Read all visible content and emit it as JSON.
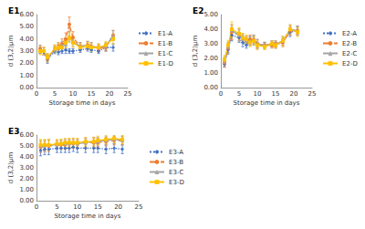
{
  "chart_data": [
    {
      "type": "line",
      "title": "E1",
      "xlabel": "Storage time in days",
      "ylabel": "d (3,2)μm",
      "grid": false,
      "xlim": [
        0,
        25
      ],
      "xticks": [
        0,
        5,
        10,
        15,
        20,
        25
      ],
      "ylim": [
        0,
        6
      ],
      "yticks": [
        {
          "value": 0,
          "label": "0.00"
        },
        {
          "value": 1,
          "label": "1.00"
        },
        {
          "value": 2,
          "label": "2.00"
        },
        {
          "value": 3,
          "label": "3.00"
        },
        {
          "value": 4,
          "label": "4.00"
        },
        {
          "value": 5,
          "label": "5.00"
        },
        {
          "value": 6,
          "label": "6.00"
        }
      ],
      "x": [
        1,
        2,
        3,
        5,
        6,
        7,
        8,
        9,
        10,
        12,
        14,
        15,
        17,
        19,
        21
      ],
      "series": [
        {
          "name": "E1-A",
          "color": "#4472c4",
          "marker": "diamond",
          "line_style": "dotted",
          "values": [
            3.0,
            2.9,
            2.3,
            3.0,
            2.9,
            3.0,
            3.1,
            3.0,
            3.0,
            3.1,
            3.2,
            3.1,
            3.0,
            3.3,
            3.3
          ],
          "errors": [
            0.2,
            0.2,
            0.3,
            0.2,
            0.2,
            0.2,
            0.3,
            0.2,
            0.2,
            0.2,
            0.2,
            0.2,
            0.2,
            0.3,
            0.3
          ]
        },
        {
          "name": "E1-B",
          "color": "#ed7d31",
          "marker": "circle",
          "line_style": "dashed",
          "values": [
            3.2,
            3.0,
            2.4,
            3.2,
            3.4,
            3.6,
            4.0,
            5.2,
            4.1,
            3.4,
            3.5,
            3.4,
            3.2,
            3.3,
            4.3
          ],
          "errors": [
            0.3,
            0.3,
            0.3,
            0.3,
            0.3,
            0.4,
            0.5,
            0.6,
            0.5,
            0.3,
            0.3,
            0.3,
            0.3,
            0.3,
            0.4
          ]
        },
        {
          "name": "E1-C",
          "color": "#a5a5a5",
          "marker": "triangle",
          "line_style": "solid",
          "values": [
            3.1,
            3.0,
            2.5,
            3.1,
            3.3,
            3.5,
            3.6,
            4.2,
            3.8,
            3.4,
            3.5,
            3.4,
            3.3,
            3.4,
            4.3
          ],
          "errors": [
            0.3,
            0.3,
            0.3,
            0.3,
            0.3,
            0.3,
            0.4,
            0.4,
            0.4,
            0.3,
            0.3,
            0.3,
            0.3,
            0.3,
            0.4
          ]
        },
        {
          "name": "E1-D",
          "color": "#ffc000",
          "marker": "square",
          "line_style": "solid",
          "values": [
            3.0,
            3.0,
            2.5,
            3.2,
            3.3,
            3.3,
            3.7,
            4.1,
            3.7,
            3.3,
            3.4,
            3.3,
            3.3,
            3.5,
            4.0
          ],
          "errors": [
            0.3,
            0.3,
            0.3,
            0.3,
            0.3,
            0.3,
            0.4,
            0.4,
            0.4,
            0.3,
            0.3,
            0.3,
            0.3,
            0.3,
            0.4
          ]
        }
      ]
    },
    {
      "type": "line",
      "title": "E2",
      "xlabel": "Storage time in days",
      "ylabel": "d (3,2)μm",
      "grid": false,
      "xlim": [
        0,
        25
      ],
      "xticks": [
        0,
        5,
        10,
        15,
        20,
        25
      ],
      "ylim": [
        0,
        5
      ],
      "yticks": [
        {
          "value": 0,
          "label": "0.00"
        },
        {
          "value": 1,
          "label": "1.00"
        },
        {
          "value": 2,
          "label": "2.00"
        },
        {
          "value": 3,
          "label": "3.00"
        },
        {
          "value": 4,
          "label": "4.00"
        },
        {
          "value": 5,
          "label": "5.00"
        }
      ],
      "x": [
        1,
        2,
        3,
        5,
        6,
        7,
        8,
        9,
        10,
        12,
        14,
        15,
        17,
        19,
        21
      ],
      "series": [
        {
          "name": "E2-A",
          "color": "#4472c4",
          "marker": "diamond",
          "line_style": "dotted",
          "values": [
            1.6,
            2.6,
            3.6,
            3.4,
            3.1,
            2.9,
            3.2,
            3.2,
            2.9,
            2.9,
            3.0,
            2.9,
            3.1,
            3.8,
            3.9
          ],
          "errors": [
            0.2,
            0.3,
            0.4,
            0.3,
            0.3,
            0.2,
            0.3,
            0.3,
            0.2,
            0.2,
            0.2,
            0.2,
            0.2,
            0.3,
            0.3
          ]
        },
        {
          "name": "E2-B",
          "color": "#ed7d31",
          "marker": "circle",
          "line_style": "dashed",
          "values": [
            1.7,
            2.7,
            3.8,
            3.6,
            3.4,
            3.2,
            3.3,
            3.3,
            3.0,
            2.9,
            2.9,
            3.0,
            3.1,
            3.9,
            3.9
          ],
          "errors": [
            0.3,
            0.3,
            0.5,
            0.4,
            0.3,
            0.3,
            0.3,
            0.3,
            0.3,
            0.2,
            0.2,
            0.2,
            0.3,
            0.3,
            0.3
          ]
        },
        {
          "name": "E2-C",
          "color": "#a5a5a5",
          "marker": "triangle",
          "line_style": "solid",
          "values": [
            1.8,
            2.8,
            3.9,
            3.6,
            3.3,
            3.2,
            3.2,
            3.3,
            3.0,
            2.9,
            3.0,
            3.0,
            3.2,
            4.0,
            3.9
          ],
          "errors": [
            0.3,
            0.3,
            0.4,
            0.4,
            0.3,
            0.3,
            0.3,
            0.3,
            0.3,
            0.2,
            0.2,
            0.2,
            0.3,
            0.3,
            0.3
          ]
        },
        {
          "name": "E2-D",
          "color": "#ffc000",
          "marker": "square",
          "line_style": "solid",
          "values": [
            1.9,
            2.9,
            4.0,
            3.7,
            3.4,
            3.3,
            3.1,
            3.2,
            2.9,
            2.8,
            3.0,
            2.9,
            3.2,
            4.0,
            3.8
          ],
          "errors": [
            0.3,
            0.3,
            0.5,
            0.4,
            0.3,
            0.3,
            0.3,
            0.3,
            0.3,
            0.2,
            0.2,
            0.2,
            0.3,
            0.3,
            0.3
          ]
        }
      ]
    },
    {
      "type": "line",
      "title": "E3",
      "xlabel": "Storage time in days",
      "ylabel": "d (3,2)μm",
      "grid": false,
      "xlim": [
        0,
        25
      ],
      "xticks": [
        0,
        5,
        10,
        15,
        20,
        25
      ],
      "ylim": [
        0,
        6
      ],
      "yticks": [
        {
          "value": 0,
          "label": "0.00"
        },
        {
          "value": 1,
          "label": "1.00"
        },
        {
          "value": 2,
          "label": "2.00"
        },
        {
          "value": 3,
          "label": "3.00"
        },
        {
          "value": 4,
          "label": "4.00"
        },
        {
          "value": 5,
          "label": "5.00"
        },
        {
          "value": 6,
          "label": "6.00"
        }
      ],
      "x": [
        1,
        2,
        3,
        5,
        6,
        7,
        8,
        9,
        10,
        12,
        14,
        15,
        17,
        19,
        21
      ],
      "series": [
        {
          "name": "E3-A",
          "color": "#4472c4",
          "marker": "diamond",
          "line_style": "dotted",
          "values": [
            4.6,
            4.7,
            4.7,
            4.8,
            4.8,
            4.8,
            4.8,
            4.9,
            4.8,
            4.8,
            4.8,
            4.8,
            4.7,
            4.8,
            4.7
          ],
          "errors": [
            0.5,
            0.5,
            0.5,
            0.4,
            0.4,
            0.4,
            0.4,
            0.4,
            0.4,
            0.4,
            0.4,
            0.4,
            0.4,
            0.4,
            0.4
          ]
        },
        {
          "name": "E3-B",
          "color": "#ed7d31",
          "marker": "circle",
          "line_style": "dashed",
          "values": [
            4.9,
            5.0,
            5.0,
            5.1,
            5.1,
            5.1,
            5.2,
            5.2,
            5.2,
            5.3,
            5.3,
            5.3,
            5.4,
            5.5,
            5.5
          ],
          "errors": [
            0.5,
            0.5,
            0.5,
            0.4,
            0.4,
            0.4,
            0.4,
            0.4,
            0.4,
            0.4,
            0.4,
            0.4,
            0.4,
            0.4,
            0.4
          ]
        },
        {
          "name": "E3-C",
          "color": "#a5a5a5",
          "marker": "triangle",
          "line_style": "solid",
          "values": [
            5.0,
            5.0,
            5.1,
            5.1,
            5.2,
            5.2,
            5.2,
            5.3,
            5.2,
            5.3,
            5.4,
            5.4,
            5.5,
            5.6,
            5.5
          ],
          "errors": [
            0.5,
            0.5,
            0.5,
            0.4,
            0.4,
            0.4,
            0.4,
            0.4,
            0.4,
            0.4,
            0.4,
            0.4,
            0.4,
            0.4,
            0.4
          ]
        },
        {
          "name": "E3-D",
          "color": "#ffc000",
          "marker": "square",
          "line_style": "solid",
          "values": [
            5.1,
            5.1,
            5.1,
            5.2,
            5.2,
            5.3,
            5.3,
            5.3,
            5.3,
            5.4,
            5.4,
            5.5,
            5.6,
            5.7,
            5.6
          ],
          "errors": [
            0.5,
            0.5,
            0.5,
            0.4,
            0.4,
            0.4,
            0.4,
            0.4,
            0.4,
            0.4,
            0.4,
            0.4,
            0.4,
            0.4,
            0.4
          ]
        }
      ]
    }
  ]
}
